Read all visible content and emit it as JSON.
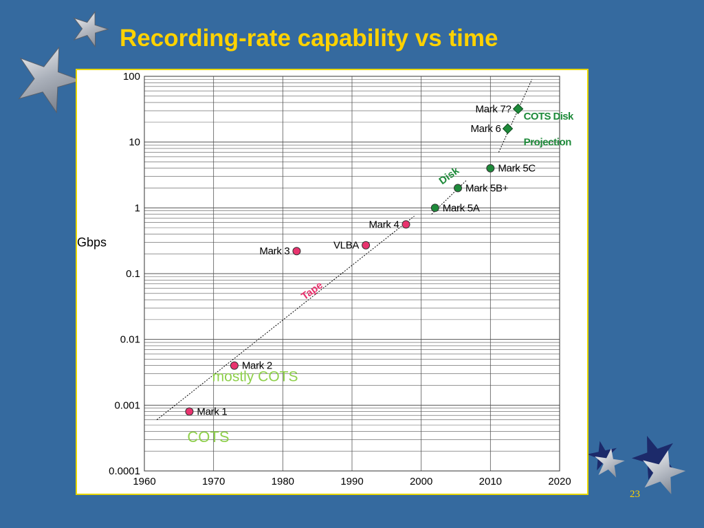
{
  "slide": {
    "title": "Recording-rate capability vs time",
    "page_number": "23"
  },
  "colors": {
    "background": "#356a9f",
    "title": "#ffd200",
    "tape_marker": "#e8336e",
    "disk_marker": "#1e8a3a",
    "cots_text": "#8ed04a",
    "panel_border": "#e8d600"
  },
  "chart_data": {
    "type": "scatter",
    "title": "",
    "xlabel": "",
    "ylabel": "Gbps",
    "yscale": "log",
    "xlim": [
      1960,
      2020
    ],
    "ylim": [
      0.0001,
      100
    ],
    "x_ticks": [
      "1960",
      "1970",
      "1980",
      "1990",
      "2000",
      "2010",
      "2020"
    ],
    "y_ticks": [
      "0.0001",
      "0.001",
      "0.01",
      "0.1",
      "1",
      "10",
      "100"
    ],
    "grid": true,
    "series": [
      {
        "marker": "circle",
        "color": "#e8336e",
        "points": [
          {
            "label": "Mark 1",
            "x": 1966.5,
            "y": 0.0008
          },
          {
            "label": "Mark 2",
            "x": 1973,
            "y": 0.004
          },
          {
            "label": "Mark 3",
            "x": 1982,
            "y": 0.22
          },
          {
            "label": "VLBA",
            "x": 1992,
            "y": 0.27
          },
          {
            "label": "Mark 4",
            "x": 1997.8,
            "y": 0.56
          }
        ]
      },
      {
        "marker": "circle",
        "color": "#1e8a3a",
        "points": [
          {
            "label": "Mark 5A",
            "x": 2002,
            "y": 1
          },
          {
            "label": "Mark 5B+",
            "x": 2005.3,
            "y": 2
          },
          {
            "label": "Mark 5C",
            "x": 2010,
            "y": 4
          }
        ]
      },
      {
        "marker": "diamond",
        "color": "#1e8a3a",
        "points": [
          {
            "label": "Mark 6",
            "x": 2012.5,
            "y": 16
          },
          {
            "label": "Mark 7?",
            "x": 2014,
            "y": 32
          }
        ]
      }
    ],
    "trend_lines": [
      {
        "label": "Tape",
        "color": "#e8336e",
        "from": [
          1961.8,
          0.0006
        ],
        "to": [
          1999,
          0.75
        ]
      },
      {
        "label": "Disk",
        "color": "#1e8a3a",
        "from": [
          2001.5,
          0.8
        ],
        "to": [
          2006.5,
          2.6
        ]
      },
      {
        "label": "",
        "color": "#1e8a3a",
        "from": [
          2011.2,
          7
        ],
        "to": [
          2016,
          90
        ]
      }
    ],
    "annotations": [
      {
        "text": "COTS Disk",
        "color": "#1e8a3a"
      },
      {
        "text": "Projection",
        "color": "#1e8a3a"
      },
      {
        "text": "mostly COTS",
        "color": "#8ed04a"
      },
      {
        "text": "COTS",
        "color": "#8ed04a"
      }
    ]
  }
}
